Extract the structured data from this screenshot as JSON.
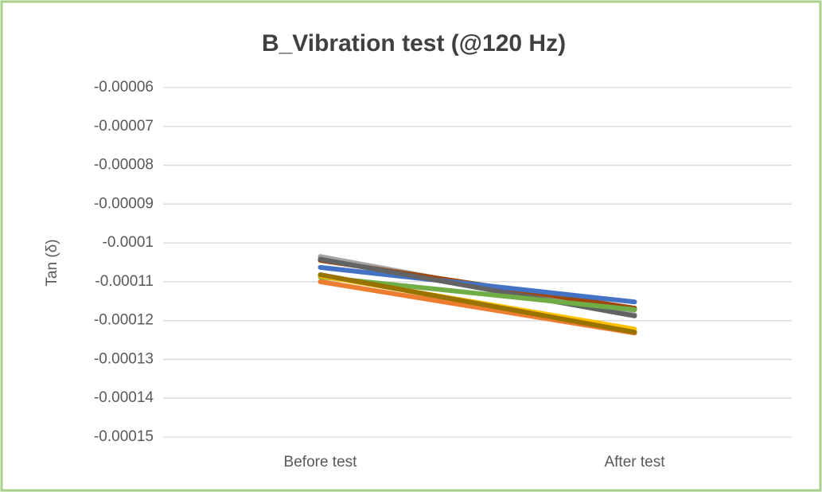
{
  "chart_data": {
    "type": "line",
    "title": "B_Vibration test (@120 Hz)",
    "y_label": "Tan (δ)",
    "categories": [
      "Before test",
      "After test"
    ],
    "series": [
      {
        "color": "#a5a5a5",
        "values": [
          -0.0001035,
          -0.0001185
        ]
      },
      {
        "color": "#9e480e",
        "values": [
          -0.0001045,
          -0.0001168
        ]
      },
      {
        "color": "#4472c4",
        "values": [
          -0.0001063,
          -0.0001152
        ]
      },
      {
        "color": "#636363",
        "values": [
          -0.0001042,
          -0.0001188
        ]
      },
      {
        "color": "#70ad47",
        "values": [
          -0.0001088,
          -0.0001172
        ]
      },
      {
        "color": "#ffc000",
        "values": [
          -0.0001085,
          -0.0001222
        ]
      },
      {
        "color": "#ed7d31",
        "values": [
          -0.00011,
          -0.0001232
        ]
      },
      {
        "color": "#997300",
        "values": [
          -0.0001082,
          -0.000123
        ]
      }
    ],
    "ylim": [
      -0.00015,
      -6e-05
    ],
    "yticks": [
      -0.00015,
      -0.00014,
      -0.00013,
      -0.00012,
      -0.00011,
      -0.0001,
      -9e-05,
      -8e-05,
      -7e-05,
      -6e-05
    ],
    "grid": true
  }
}
